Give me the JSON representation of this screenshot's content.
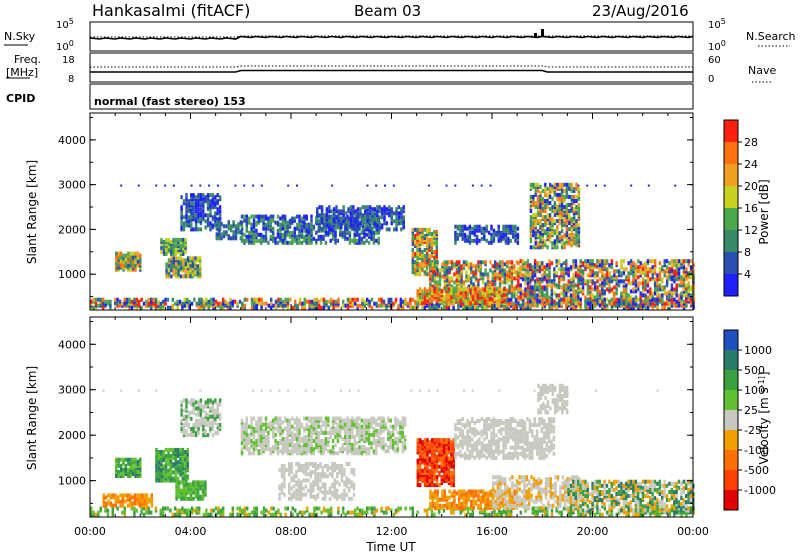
{
  "header": {
    "radar_title": "Hankasalmi (fitACF)",
    "beam_label": "Beam 03",
    "date_label": "23/Aug/2016"
  },
  "strips": {
    "nsky_label": "N.Sky",
    "nsky_ticks": [
      "10^5",
      "10^0"
    ],
    "nsearch_label": "N.Search",
    "nsearch_ticks": [
      "10^5",
      "10^0"
    ],
    "freq_label_1": "Freq.",
    "freq_label_2": "[MHz]",
    "freq_ticks": [
      "18",
      "8"
    ],
    "nave_label": "Nave",
    "nave_ticks": [
      "60",
      "0"
    ],
    "cpid_label": "CPID",
    "cpid_text": "normal (fast stereo) 153"
  },
  "colors": {
    "power_scale": [
      "#2020ff",
      "#2a4fb0",
      "#3a8a6a",
      "#4ca84c",
      "#c8d020",
      "#f0a020",
      "#ff7010",
      "#ff2010"
    ],
    "velocity_scale": [
      "#2050c0",
      "#2a7a6a",
      "#3aa040",
      "#60c030",
      "#c8c8c0",
      "#f0a000",
      "#ff7000",
      "#ff4000",
      "#e00000"
    ]
  },
  "chart_data": [
    {
      "type": "heatmap",
      "ylabel": "Slant Range [km]",
      "yticks": [
        "1000",
        "2000",
        "3000",
        "4000"
      ],
      "ylim": [
        200,
        4600
      ],
      "xlim": [
        "00:00",
        "24:00"
      ],
      "colorbar_label": "Power [dB]",
      "colorbar_ticks": [
        "4",
        "8",
        "12",
        "16",
        "20",
        "24",
        "28"
      ],
      "colorbar_range": [
        0,
        32
      ]
    },
    {
      "type": "heatmap",
      "ylabel": "Slant Range [km]",
      "yticks": [
        "1000",
        "2000",
        "3000",
        "4000"
      ],
      "ylim": [
        200,
        4600
      ],
      "xlabel": "Time UT",
      "xticks": [
        "00:00",
        "04:00",
        "08:00",
        "12:00",
        "16:00",
        "20:00",
        "00:00"
      ],
      "xlim": [
        "00:00",
        "24:00"
      ],
      "colorbar_label": "Velocity [m s^-1]",
      "colorbar_ticks": [
        "1000",
        "500",
        "100",
        "25",
        "-25",
        "-100",
        "-500",
        "-1000"
      ]
    }
  ]
}
